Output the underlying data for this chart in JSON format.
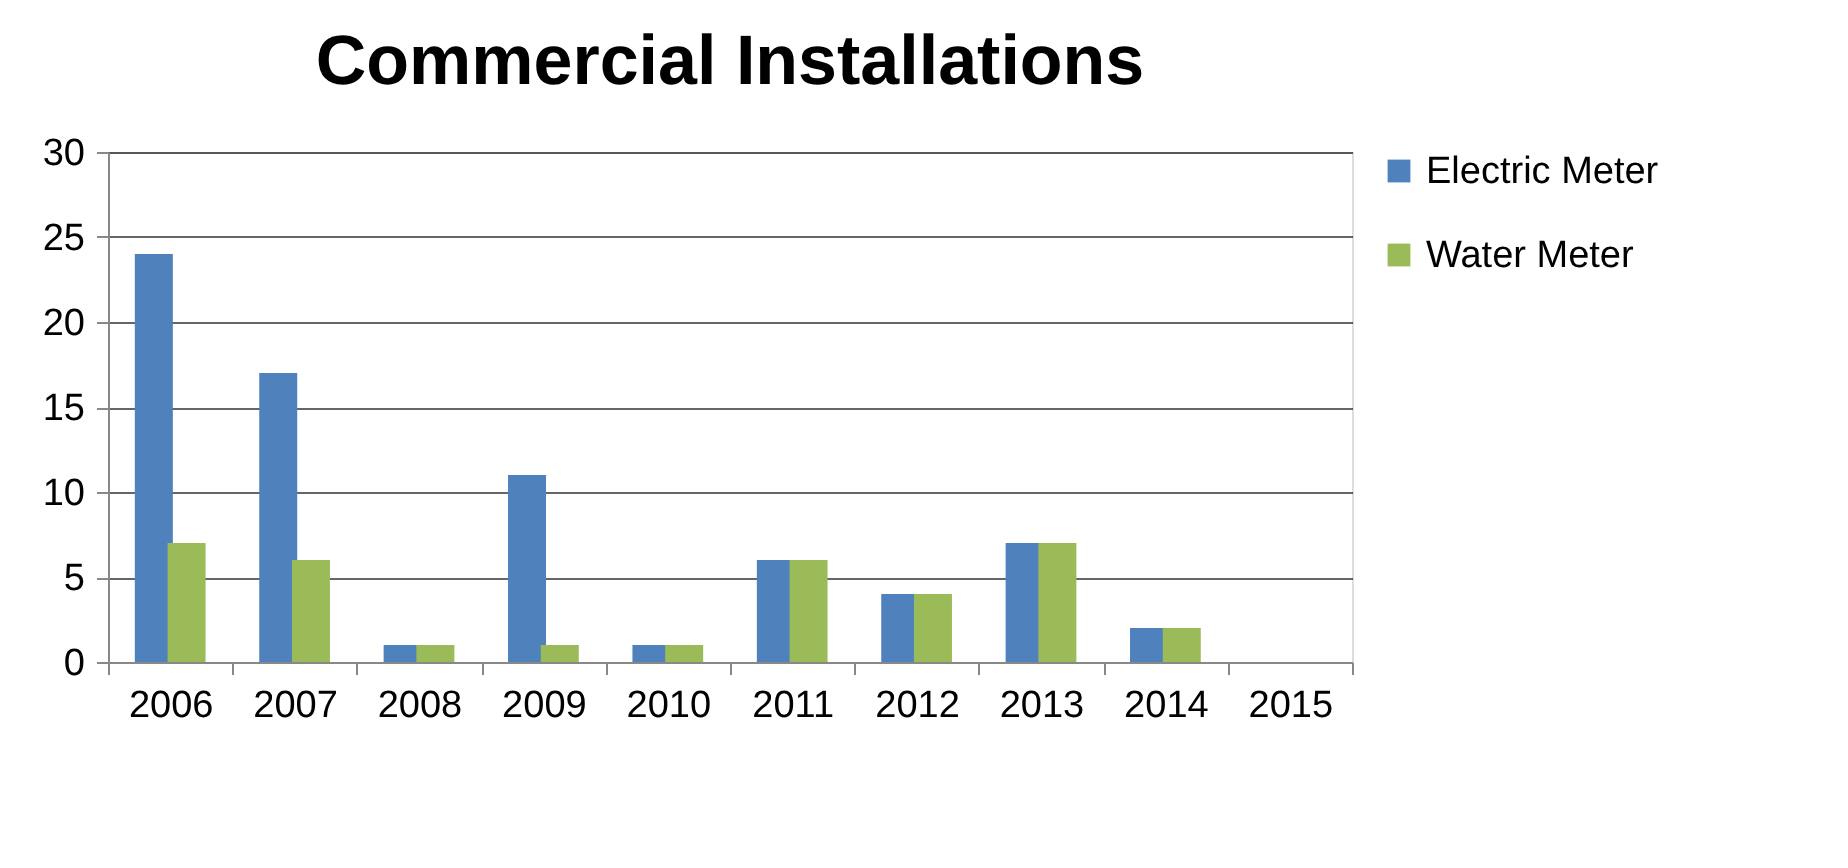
{
  "chart_data": {
    "type": "bar",
    "title": "Commercial Installations",
    "categories": [
      "2006",
      "2007",
      "2008",
      "2009",
      "2010",
      "2011",
      "2012",
      "2013",
      "2014",
      "2015"
    ],
    "series": [
      {
        "name": "Electric Meter",
        "color": "#4f81bd",
        "values": [
          24,
          17,
          1,
          11,
          1,
          6,
          4,
          7,
          2,
          null
        ]
      },
      {
        "name": "Water Meter",
        "color": "#9bbb59",
        "values": [
          7,
          6,
          1,
          1,
          1,
          6,
          4,
          7,
          2,
          null
        ]
      }
    ],
    "ylim": [
      0,
      30
    ],
    "yticks": [
      0,
      5,
      10,
      15,
      20,
      25,
      30
    ],
    "grid": "y",
    "legend": "right"
  }
}
